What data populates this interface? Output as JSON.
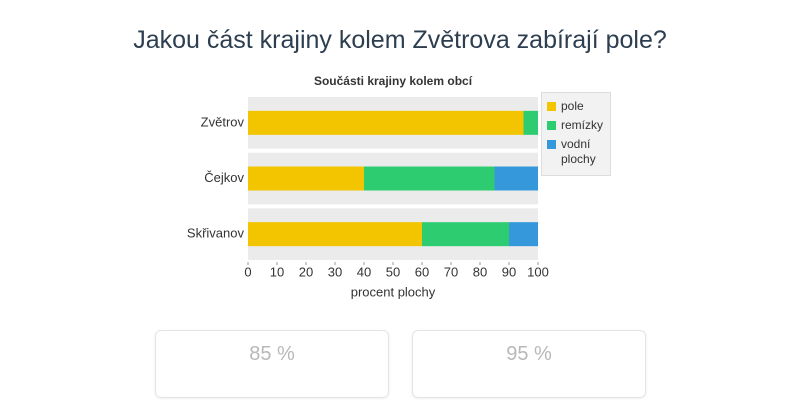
{
  "question": "Jakou část krajiny kolem Zvětrova zabírají pole?",
  "chart_data": {
    "type": "stacked-barh",
    "title": "Součásti krajiny kolem obcí",
    "x_label": "procent plochy",
    "categories": [
      "Zvětrov",
      "Čejkov",
      "Skřivanov"
    ],
    "series": [
      {
        "name": "pole",
        "color": "#f2c500",
        "values": [
          95,
          40,
          60
        ]
      },
      {
        "name": "remízky",
        "color": "#2ecc71",
        "values": [
          5,
          45,
          30
        ]
      },
      {
        "name": "vodní plochy",
        "color": "#3498db",
        "values": [
          0,
          15,
          10
        ]
      }
    ],
    "xlim": [
      0,
      100
    ],
    "xticks": [
      0,
      10,
      20,
      30,
      40,
      50,
      60,
      70,
      80,
      90,
      100
    ],
    "legend": "right"
  },
  "options": [
    "85 %",
    "95 %"
  ]
}
